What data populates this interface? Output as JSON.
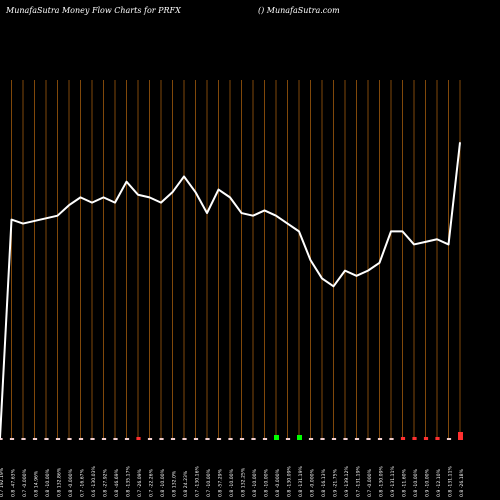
{
  "header": {
    "left": "MunafaSutra  Money Flow  Charts for PRFX",
    "right": "() MunafaSutra.com"
  },
  "colors": {
    "background": "#000000",
    "gridline": "#b8680f",
    "line": "#ffffff",
    "bar_green": "#00ff00",
    "bar_red": "#ff3030",
    "bar_neutral": "#f2d0d0"
  },
  "chart_data": {
    "type": "line",
    "title": "",
    "xlabel": "",
    "ylabel": "",
    "grid": true,
    "categories": [
      "0.7 192.19%",
      "0.8 -47.63%",
      "0.7 -0.000%",
      "0.8 14.96%",
      "0.8 -10.00%",
      "0.8 132.86%",
      "0.8 -0.000%",
      "0.7 -16.67%",
      "0.6 -130.03%",
      "0.8 -27.92%",
      "0.8 -46.69%",
      "0.8 -135.17%",
      "0.7 -26.09%",
      "0.7 -22.26%",
      "0.8 -10.00%",
      "0.8 132.0%",
      "0.8 24.23%",
      "0.7 -130.16%",
      "0.7 -10.00%",
      "0.8 -57.29%",
      "0.8 -10.00%",
      "0.8 132.25%",
      "0.8 -10.00%",
      "0.8 -10.00%",
      "0.8 -0.000%",
      "0.8 -130.09%",
      "0.8 -131.19%",
      "0.8 -0.000%",
      "0.8 -16.13%",
      "0.9 -21.75%",
      "0.9 -139.12%",
      "0.7 -131.19%",
      "0.7 -0.000%",
      "0.8 -130.09%",
      "0.9 -131.11%",
      "0.8 -11.60%",
      "0.8 -10.00%",
      "0.9 -10.00%",
      "0.9 -12.10%",
      "0.8 -131.11%",
      "0.8 -26.18%"
    ],
    "x_label_prefixes": {
      "0": "0.5",
      "1": "0.5",
      "25": "0.5",
      "26": "0.5",
      "28": "0.5",
      "39": "1.2"
    },
    "values": [
      0,
      167,
      164,
      166,
      168,
      170,
      178,
      184,
      180,
      184,
      180,
      196,
      186,
      184,
      180,
      188,
      200,
      188,
      172,
      190,
      184,
      172,
      170,
      174,
      170,
      164,
      158,
      136,
      122,
      116,
      128,
      124,
      128,
      134,
      158,
      158,
      148,
      150,
      152,
      148,
      226
    ],
    "flow_bars": [
      {
        "value": 2,
        "color": "neutral"
      },
      {
        "value": 2,
        "color": "neutral"
      },
      {
        "value": 2,
        "color": "neutral"
      },
      {
        "value": 2,
        "color": "neutral"
      },
      {
        "value": 2,
        "color": "neutral"
      },
      {
        "value": 2,
        "color": "neutral"
      },
      {
        "value": 2,
        "color": "neutral"
      },
      {
        "value": 2,
        "color": "neutral"
      },
      {
        "value": 2,
        "color": "neutral"
      },
      {
        "value": 2,
        "color": "neutral"
      },
      {
        "value": 2,
        "color": "neutral"
      },
      {
        "value": 2,
        "color": "neutral"
      },
      {
        "value": 3,
        "color": "red"
      },
      {
        "value": 2,
        "color": "neutral"
      },
      {
        "value": 2,
        "color": "neutral"
      },
      {
        "value": 2,
        "color": "neutral"
      },
      {
        "value": 2,
        "color": "neutral"
      },
      {
        "value": 2,
        "color": "neutral"
      },
      {
        "value": 2,
        "color": "neutral"
      },
      {
        "value": 2,
        "color": "neutral"
      },
      {
        "value": 2,
        "color": "neutral"
      },
      {
        "value": 2,
        "color": "neutral"
      },
      {
        "value": 2,
        "color": "neutral"
      },
      {
        "value": 2,
        "color": "neutral"
      },
      {
        "value": 5,
        "color": "green"
      },
      {
        "value": 2,
        "color": "neutral"
      },
      {
        "value": 5,
        "color": "green"
      },
      {
        "value": 2,
        "color": "neutral"
      },
      {
        "value": 2,
        "color": "neutral"
      },
      {
        "value": 2,
        "color": "neutral"
      },
      {
        "value": 2,
        "color": "neutral"
      },
      {
        "value": 2,
        "color": "neutral"
      },
      {
        "value": 2,
        "color": "neutral"
      },
      {
        "value": 2,
        "color": "neutral"
      },
      {
        "value": 2,
        "color": "neutral"
      },
      {
        "value": 3,
        "color": "red"
      },
      {
        "value": 3,
        "color": "red"
      },
      {
        "value": 3,
        "color": "red"
      },
      {
        "value": 3,
        "color": "red"
      },
      {
        "value": 2,
        "color": "neutral"
      },
      {
        "value": 8,
        "color": "red"
      }
    ],
    "ylim": [
      0,
      260
    ]
  }
}
